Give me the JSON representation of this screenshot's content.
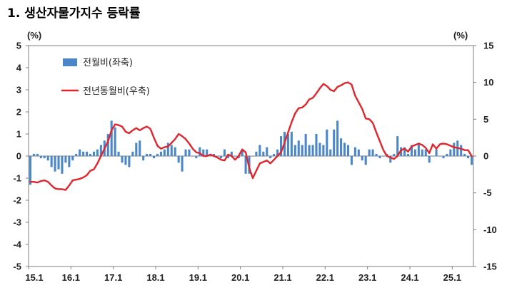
{
  "chart_data": {
    "type": "bar+line",
    "title": "1. 생산자물가지수 등락률",
    "left_unit": "(%)",
    "right_unit": "(%)",
    "y_left_range": [
      -5,
      5
    ],
    "y_right_range": [
      -15,
      15
    ],
    "y_left_ticks": [
      "5",
      "4",
      "3",
      "2",
      "1",
      "0",
      "-1",
      "-2",
      "-3",
      "-4",
      "-5"
    ],
    "y_right_ticks": [
      "15",
      "10",
      "5",
      "0",
      "-5",
      "-10",
      "-15"
    ],
    "x_tick_labels": [
      "15.1",
      "16.1",
      "17.1",
      "18.1",
      "19.1",
      "20.1",
      "21.1",
      "22.1",
      "23.1",
      "24.1",
      "25.1"
    ],
    "x_period": "2015.01 - 2025.06, monthly",
    "series": [
      {
        "name": "전월비(좌축)",
        "type": "bar",
        "axis": "left",
        "color": "#4a86c8",
        "values": [
          -1.3,
          0.1,
          0.1,
          -0.1,
          -0.1,
          -0.2,
          -0.5,
          -0.7,
          -0.6,
          -0.8,
          -0.3,
          -0.5,
          -0.2,
          0.1,
          0.3,
          0.2,
          0.2,
          0.1,
          0.2,
          0.3,
          0.5,
          0.7,
          1.0,
          1.6,
          1.3,
          0.2,
          -0.3,
          -0.4,
          -0.5,
          0.2,
          0.6,
          0.7,
          -0.2,
          0.1,
          0.1,
          -0.1,
          0.1,
          0.2,
          0.3,
          0.6,
          0.5,
          0.4,
          -0.3,
          -0.7,
          0.3,
          0.3,
          0.0,
          -0.1,
          0.4,
          0.3,
          0.3,
          0.1,
          0.1,
          0.0,
          -0.1,
          0.3,
          -0.1,
          0.2,
          0.0,
          -0.1,
          0.3,
          -0.8,
          -0.8,
          0.0,
          0.2,
          0.5,
          0.2,
          0.4,
          -0.1,
          0.1,
          0.3,
          0.9,
          1.1,
          1.0,
          1.1,
          0.5,
          0.7,
          0.5,
          1.0,
          0.5,
          0.5,
          1.0,
          0.6,
          0.5,
          1.2,
          0.3,
          1.2,
          1.6,
          0.8,
          0.6,
          0.5,
          -0.4,
          0.4,
          0.3,
          -0.2,
          -0.4,
          0.3,
          0.3,
          0.1,
          -0.1,
          0.0,
          0.1,
          -0.3,
          0.1,
          0.9,
          0.4,
          0.4,
          0.1,
          0.5,
          0.3,
          0.6,
          0.3,
          0.3,
          -0.3,
          0.0,
          0.3,
          0.0,
          -0.1,
          0.1,
          0.3,
          0.6,
          0.7,
          0.5,
          0.1,
          -0.1,
          -0.4
        ]
      },
      {
        "name": "전년동월비(우축)",
        "type": "line",
        "axis": "right",
        "color": "#e0262c",
        "values": [
          -3.5,
          -3.5,
          -3.6,
          -3.4,
          -3.3,
          -3.5,
          -4.0,
          -4.4,
          -4.5,
          -4.5,
          -4.6,
          -4.0,
          -3.3,
          -3.2,
          -3.1,
          -2.9,
          -2.6,
          -2.0,
          -1.8,
          -1.0,
          0.0,
          1.0,
          2.0,
          3.5,
          4.3,
          4.2,
          4.0,
          3.3,
          3.1,
          3.5,
          3.8,
          3.5,
          3.8,
          4.0,
          3.7,
          2.5,
          1.4,
          1.0,
          1.2,
          1.3,
          1.8,
          2.3,
          3.0,
          2.7,
          2.3,
          1.7,
          1.0,
          0.5,
          0.4,
          0.0,
          0.0,
          0.2,
          0.0,
          -0.2,
          -0.5,
          -0.6,
          0.2,
          0.0,
          -0.5,
          0.0,
          0.9,
          0.5,
          -1.6,
          -3.0,
          -2.0,
          -1.0,
          -0.8,
          -0.6,
          -1.0,
          -0.5,
          0.0,
          0.5,
          1.8,
          3.2,
          4.6,
          5.8,
          6.5,
          6.6,
          7.0,
          7.7,
          7.9,
          8.5,
          9.2,
          9.8,
          9.5,
          9.0,
          8.8,
          9.4,
          9.6,
          9.9,
          10.0,
          9.7,
          8.2,
          7.3,
          6.4,
          5.1,
          5.0,
          4.5,
          3.2,
          2.0,
          0.8,
          0.0,
          -0.2,
          -0.4,
          0.0,
          0.8,
          1.0,
          0.6,
          1.3,
          1.5,
          1.7,
          1.5,
          1.1,
          0.4,
          1.6,
          1.0,
          1.6,
          1.7,
          1.6,
          1.4,
          1.2,
          1.1,
          1.0,
          0.8,
          0.8,
          0.0
        ]
      }
    ],
    "legend_position": "top-left",
    "grid": false
  }
}
